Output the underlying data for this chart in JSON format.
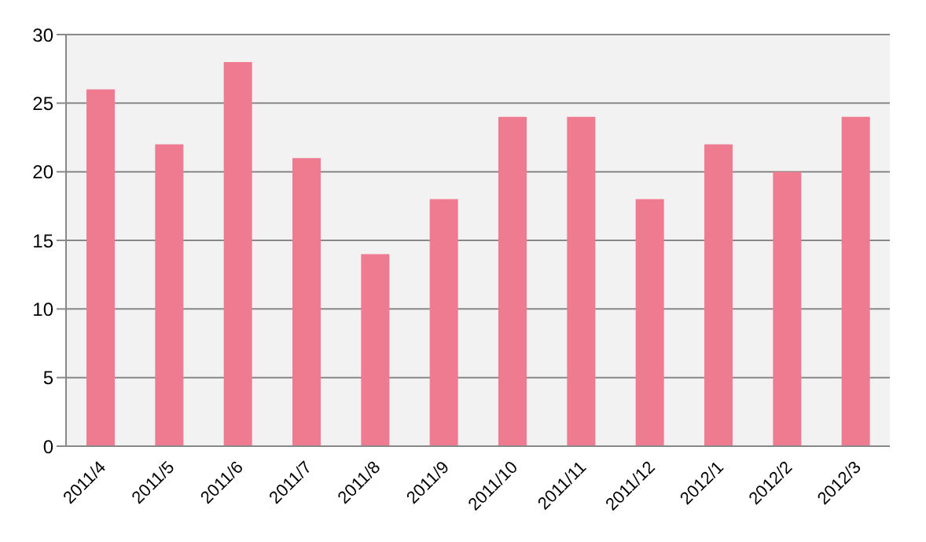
{
  "chart_data": {
    "type": "bar",
    "categories": [
      "2011/4",
      "2011/5",
      "2011/6",
      "2011/7",
      "2011/8",
      "2011/9",
      "2011/10",
      "2011/11",
      "2011/12",
      "2012/1",
      "2012/2",
      "2012/3"
    ],
    "values": [
      26,
      22,
      28,
      21,
      14,
      18,
      24,
      24,
      18,
      22,
      20,
      24
    ],
    "color": "#ef7b91",
    "ylim": [
      0,
      30
    ],
    "yticks": [
      0,
      5,
      10,
      15,
      20,
      25,
      30
    ],
    "grid": "y"
  }
}
